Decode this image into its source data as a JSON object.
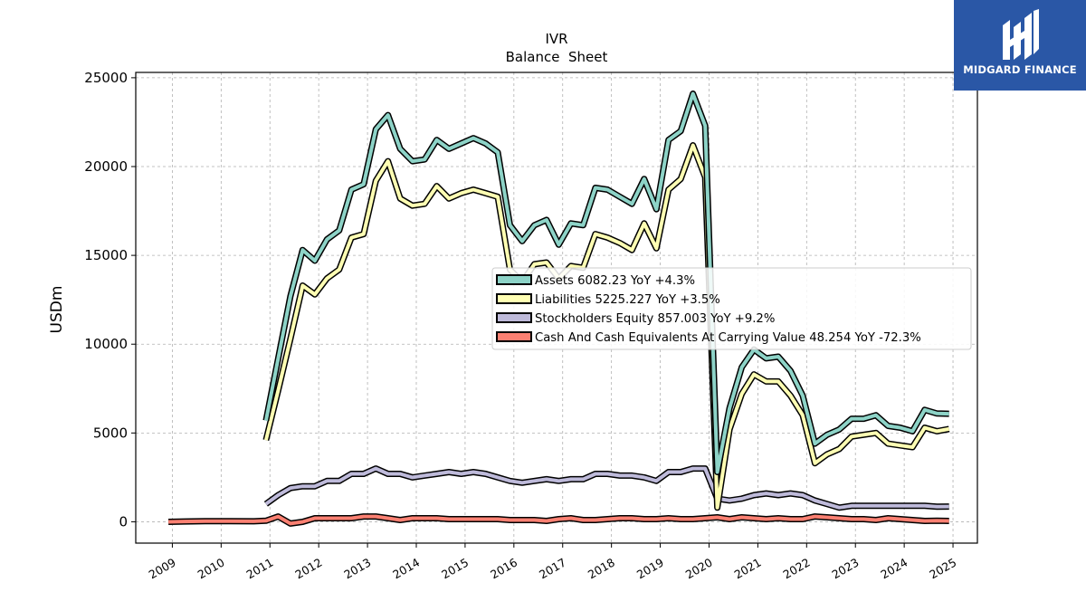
{
  "chart_data": {
    "type": "line",
    "title": "IVR",
    "subtitle": "Balance  Sheet",
    "ylabel": "USDm",
    "xlabel": "",
    "xlim": [
      2008.25,
      2025.5
    ],
    "ylim": [
      -1200,
      25300
    ],
    "x_ticks": [
      2009,
      2010,
      2011,
      2012,
      2013,
      2014,
      2015,
      2016,
      2017,
      2018,
      2019,
      2020,
      2021,
      2022,
      2023,
      2024,
      2025
    ],
    "y_ticks": [
      0,
      5000,
      10000,
      15000,
      20000,
      25000
    ],
    "grid": true,
    "legend_position": "center-right",
    "series": [
      {
        "name": "Assets",
        "legend_label": "Assets  6082.23 YoY +4.3%",
        "color": "#8dd3c7",
        "x": [
          2010.92,
          2011.17,
          2011.42,
          2011.67,
          2011.92,
          2012.17,
          2012.42,
          2012.67,
          2012.92,
          2013.17,
          2013.42,
          2013.67,
          2013.92,
          2014.17,
          2014.42,
          2014.67,
          2014.92,
          2015.17,
          2015.42,
          2015.67,
          2015.92,
          2016.17,
          2016.42,
          2016.67,
          2016.92,
          2017.17,
          2017.42,
          2017.67,
          2017.92,
          2018.17,
          2018.42,
          2018.67,
          2018.92,
          2019.17,
          2019.42,
          2019.67,
          2019.92,
          2020.17,
          2020.42,
          2020.67,
          2020.92,
          2021.17,
          2021.42,
          2021.67,
          2021.92,
          2022.17,
          2022.42,
          2022.67,
          2022.92,
          2023.17,
          2023.42,
          2023.67,
          2023.92,
          2024.17,
          2024.42,
          2024.67,
          2024.92
        ],
        "y": [
          5700,
          9200,
          12700,
          15300,
          14700,
          15900,
          16400,
          18700,
          19000,
          22100,
          22900,
          21000,
          20300,
          20400,
          21500,
          21000,
          21300,
          21600,
          21300,
          20800,
          16700,
          15800,
          16700,
          17000,
          15600,
          16800,
          16700,
          18800,
          18700,
          18300,
          17900,
          19300,
          17600,
          21500,
          22000,
          24100,
          22300,
          2800,
          6400,
          8700,
          9700,
          9200,
          9300,
          8500,
          7100,
          4400,
          4900,
          5200,
          5800,
          5800,
          6000,
          5400,
          5300,
          5100,
          6300,
          6100,
          6082
        ]
      },
      {
        "name": "Liabilities",
        "legend_label": "Liabilities  5225.227 YoY +3.5%",
        "color": "#ffffb3",
        "x": [
          2010.92,
          2011.17,
          2011.42,
          2011.67,
          2011.92,
          2012.17,
          2012.42,
          2012.67,
          2012.92,
          2013.17,
          2013.42,
          2013.67,
          2013.92,
          2014.17,
          2014.42,
          2014.67,
          2014.92,
          2015.17,
          2015.42,
          2015.67,
          2015.92,
          2016.17,
          2016.42,
          2016.67,
          2016.92,
          2017.17,
          2017.42,
          2017.67,
          2017.92,
          2018.17,
          2018.42,
          2018.67,
          2018.92,
          2019.17,
          2019.42,
          2019.67,
          2019.92,
          2020.17,
          2020.42,
          2020.67,
          2020.92,
          2021.17,
          2021.42,
          2021.67,
          2021.92,
          2022.17,
          2022.42,
          2022.67,
          2022.92,
          2023.17,
          2023.42,
          2023.67,
          2023.92,
          2024.17,
          2024.42,
          2024.67,
          2024.92
        ],
        "y": [
          4600,
          7400,
          10300,
          13300,
          12800,
          13700,
          14200,
          16000,
          16200,
          19200,
          20300,
          18200,
          17800,
          17900,
          18900,
          18200,
          18500,
          18700,
          18500,
          18300,
          14200,
          13500,
          14500,
          14600,
          13700,
          14400,
          14300,
          16200,
          16000,
          15700,
          15300,
          16800,
          15400,
          18700,
          19300,
          21200,
          19400,
          800,
          5200,
          7200,
          8300,
          7900,
          7900,
          7100,
          6000,
          3300,
          3800,
          4100,
          4800,
          4900,
          5000,
          4400,
          4300,
          4200,
          5300,
          5100,
          5225
        ]
      },
      {
        "name": "Stockholders Equity",
        "legend_label": "Stockholders Equity  857.003 YoY +9.2%",
        "color": "#bebada",
        "x": [
          2010.92,
          2011.17,
          2011.42,
          2011.67,
          2011.92,
          2012.17,
          2012.42,
          2012.67,
          2012.92,
          2013.17,
          2013.42,
          2013.67,
          2013.92,
          2014.17,
          2014.42,
          2014.67,
          2014.92,
          2015.17,
          2015.42,
          2015.67,
          2015.92,
          2016.17,
          2016.42,
          2016.67,
          2016.92,
          2017.17,
          2017.42,
          2017.67,
          2017.92,
          2018.17,
          2018.42,
          2018.67,
          2018.92,
          2019.17,
          2019.42,
          2019.67,
          2019.92,
          2020.17,
          2020.42,
          2020.67,
          2020.92,
          2021.17,
          2021.42,
          2021.67,
          2021.92,
          2022.17,
          2022.42,
          2022.67,
          2022.92,
          2023.17,
          2023.42,
          2023.67,
          2023.92,
          2024.17,
          2024.42,
          2024.67,
          2024.92
        ],
        "y": [
          1000,
          1500,
          1900,
          2000,
          2000,
          2300,
          2300,
          2700,
          2700,
          3000,
          2700,
          2700,
          2500,
          2600,
          2700,
          2800,
          2700,
          2800,
          2700,
          2500,
          2300,
          2200,
          2300,
          2400,
          2300,
          2400,
          2400,
          2700,
          2700,
          2600,
          2600,
          2500,
          2300,
          2800,
          2800,
          3000,
          3000,
          1300,
          1200,
          1300,
          1500,
          1600,
          1500,
          1600,
          1500,
          1200,
          1000,
          800,
          900,
          900,
          900,
          900,
          900,
          900,
          900,
          850,
          857
        ]
      },
      {
        "name": "Cash And Cash Equivalents At Carrying Value",
        "legend_label": "Cash And Cash Equivalents At Carrying Value  48.254 YoY -72.3%",
        "color": "#fb8072",
        "x": [
          2008.92,
          2009.25,
          2009.67,
          2010.17,
          2010.67,
          2010.92,
          2011.17,
          2011.42,
          2011.67,
          2011.92,
          2012.17,
          2012.42,
          2012.67,
          2012.92,
          2013.17,
          2013.42,
          2013.67,
          2013.92,
          2014.17,
          2014.42,
          2014.67,
          2014.92,
          2015.17,
          2015.42,
          2015.67,
          2015.92,
          2016.17,
          2016.42,
          2016.67,
          2016.92,
          2017.17,
          2017.42,
          2017.67,
          2017.92,
          2018.17,
          2018.42,
          2018.67,
          2018.92,
          2019.17,
          2019.42,
          2019.67,
          2019.92,
          2020.17,
          2020.42,
          2020.67,
          2020.92,
          2021.17,
          2021.42,
          2021.67,
          2021.92,
          2022.17,
          2022.42,
          2022.67,
          2022.92,
          2023.17,
          2023.42,
          2023.67,
          2023.92,
          2024.17,
          2024.42,
          2024.67,
          2024.92
        ],
        "y": [
          0,
          20,
          40,
          40,
          30,
          60,
          300,
          -100,
          0,
          200,
          200,
          200,
          200,
          300,
          300,
          200,
          100,
          200,
          200,
          200,
          150,
          150,
          150,
          150,
          150,
          100,
          100,
          100,
          50,
          150,
          200,
          100,
          100,
          150,
          200,
          200,
          150,
          150,
          200,
          150,
          150,
          200,
          250,
          150,
          250,
          200,
          150,
          200,
          150,
          150,
          300,
          250,
          200,
          150,
          150,
          100,
          200,
          150,
          100,
          50,
          60,
          48
        ]
      }
    ]
  },
  "logo": {
    "text": "MIDGARD FINANCE",
    "icon": "midgard-finance-logo-icon",
    "background": "#2a57a6"
  }
}
